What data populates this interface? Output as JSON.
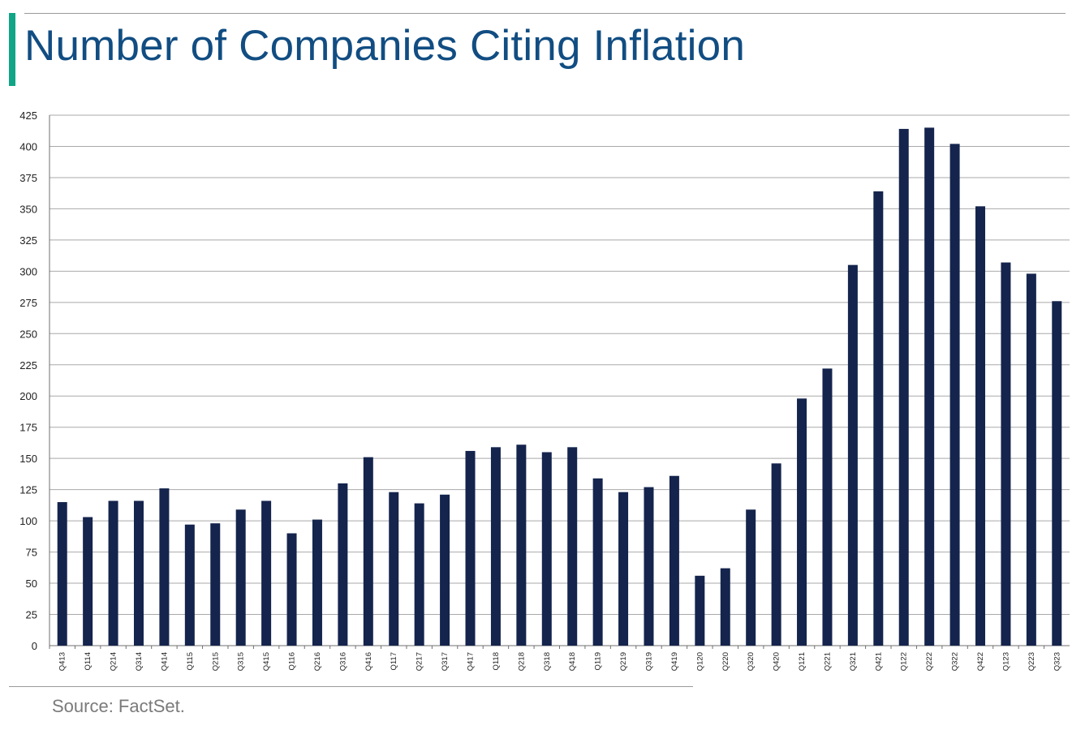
{
  "header": {
    "title": "Number of Companies Citing Inflation",
    "accent_color": "#0fa586",
    "title_color": "#114d82"
  },
  "footer": {
    "source": "Source: FactSet."
  },
  "chart_data": {
    "type": "bar",
    "title": "",
    "xlabel": "",
    "ylabel": "",
    "ylim": [
      0,
      425
    ],
    "yticks": [
      0,
      25,
      50,
      75,
      100,
      125,
      150,
      175,
      200,
      225,
      250,
      275,
      300,
      325,
      350,
      375,
      400,
      425
    ],
    "grid": true,
    "bar_color": "#14244d",
    "categories": [
      "Q413",
      "Q114",
      "Q214",
      "Q314",
      "Q414",
      "Q115",
      "Q215",
      "Q315",
      "Q415",
      "Q116",
      "Q216",
      "Q316",
      "Q416",
      "Q117",
      "Q217",
      "Q317",
      "Q417",
      "Q118",
      "Q218",
      "Q318",
      "Q418",
      "Q119",
      "Q219",
      "Q319",
      "Q419",
      "Q120",
      "Q220",
      "Q320",
      "Q420",
      "Q121",
      "Q221",
      "Q321",
      "Q421",
      "Q122",
      "Q222",
      "Q322",
      "Q422",
      "Q123",
      "Q223",
      "Q323"
    ],
    "values": [
      115,
      103,
      116,
      116,
      126,
      97,
      98,
      109,
      116,
      90,
      101,
      130,
      151,
      123,
      114,
      121,
      156,
      159,
      161,
      155,
      159,
      134,
      123,
      127,
      136,
      56,
      62,
      109,
      146,
      198,
      222,
      305,
      364,
      414,
      415,
      402,
      352,
      307,
      298,
      276
    ]
  }
}
